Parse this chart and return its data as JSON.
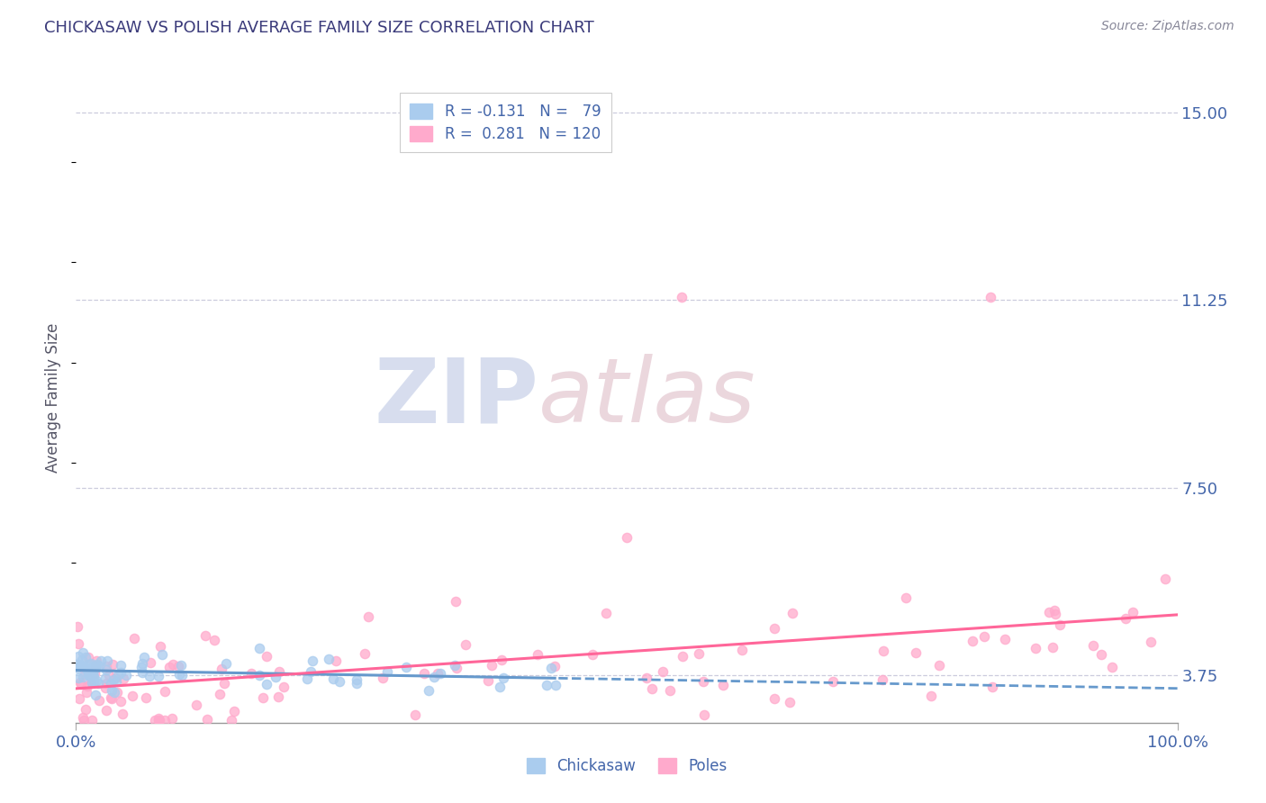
{
  "title": "CHICKASAW VS POLISH AVERAGE FAMILY SIZE CORRELATION CHART",
  "source_text": "Source: ZipAtlas.com",
  "ylabel": "Average Family Size",
  "xlim": [
    0.0,
    1.0
  ],
  "ylim": [
    2.8,
    15.8
  ],
  "yticks": [
    3.75,
    7.5,
    11.25,
    15.0
  ],
  "xticks": [
    0.0,
    1.0
  ],
  "xticklabels": [
    "0.0%",
    "100.0%"
  ],
  "title_color": "#3a3a7a",
  "axis_color": "#4466aa",
  "grid_color": "#ccccdd",
  "watermark_zip": "ZIP",
  "watermark_atlas": "atlas",
  "chickasaw_color": "#aaccee",
  "poles_color": "#ffaacc",
  "chickasaw_line_color": "#6699cc",
  "poles_line_color": "#ff6699",
  "legend_items": [
    {
      "label": "R = -0.131   N =   79",
      "color": "#aaccee"
    },
    {
      "label": "R =  0.281   N = 120",
      "color": "#ffaacc"
    }
  ],
  "bottom_legend": [
    {
      "label": "Chickasaw",
      "color": "#aaccee"
    },
    {
      "label": "Poles",
      "color": "#ffaacc"
    }
  ]
}
